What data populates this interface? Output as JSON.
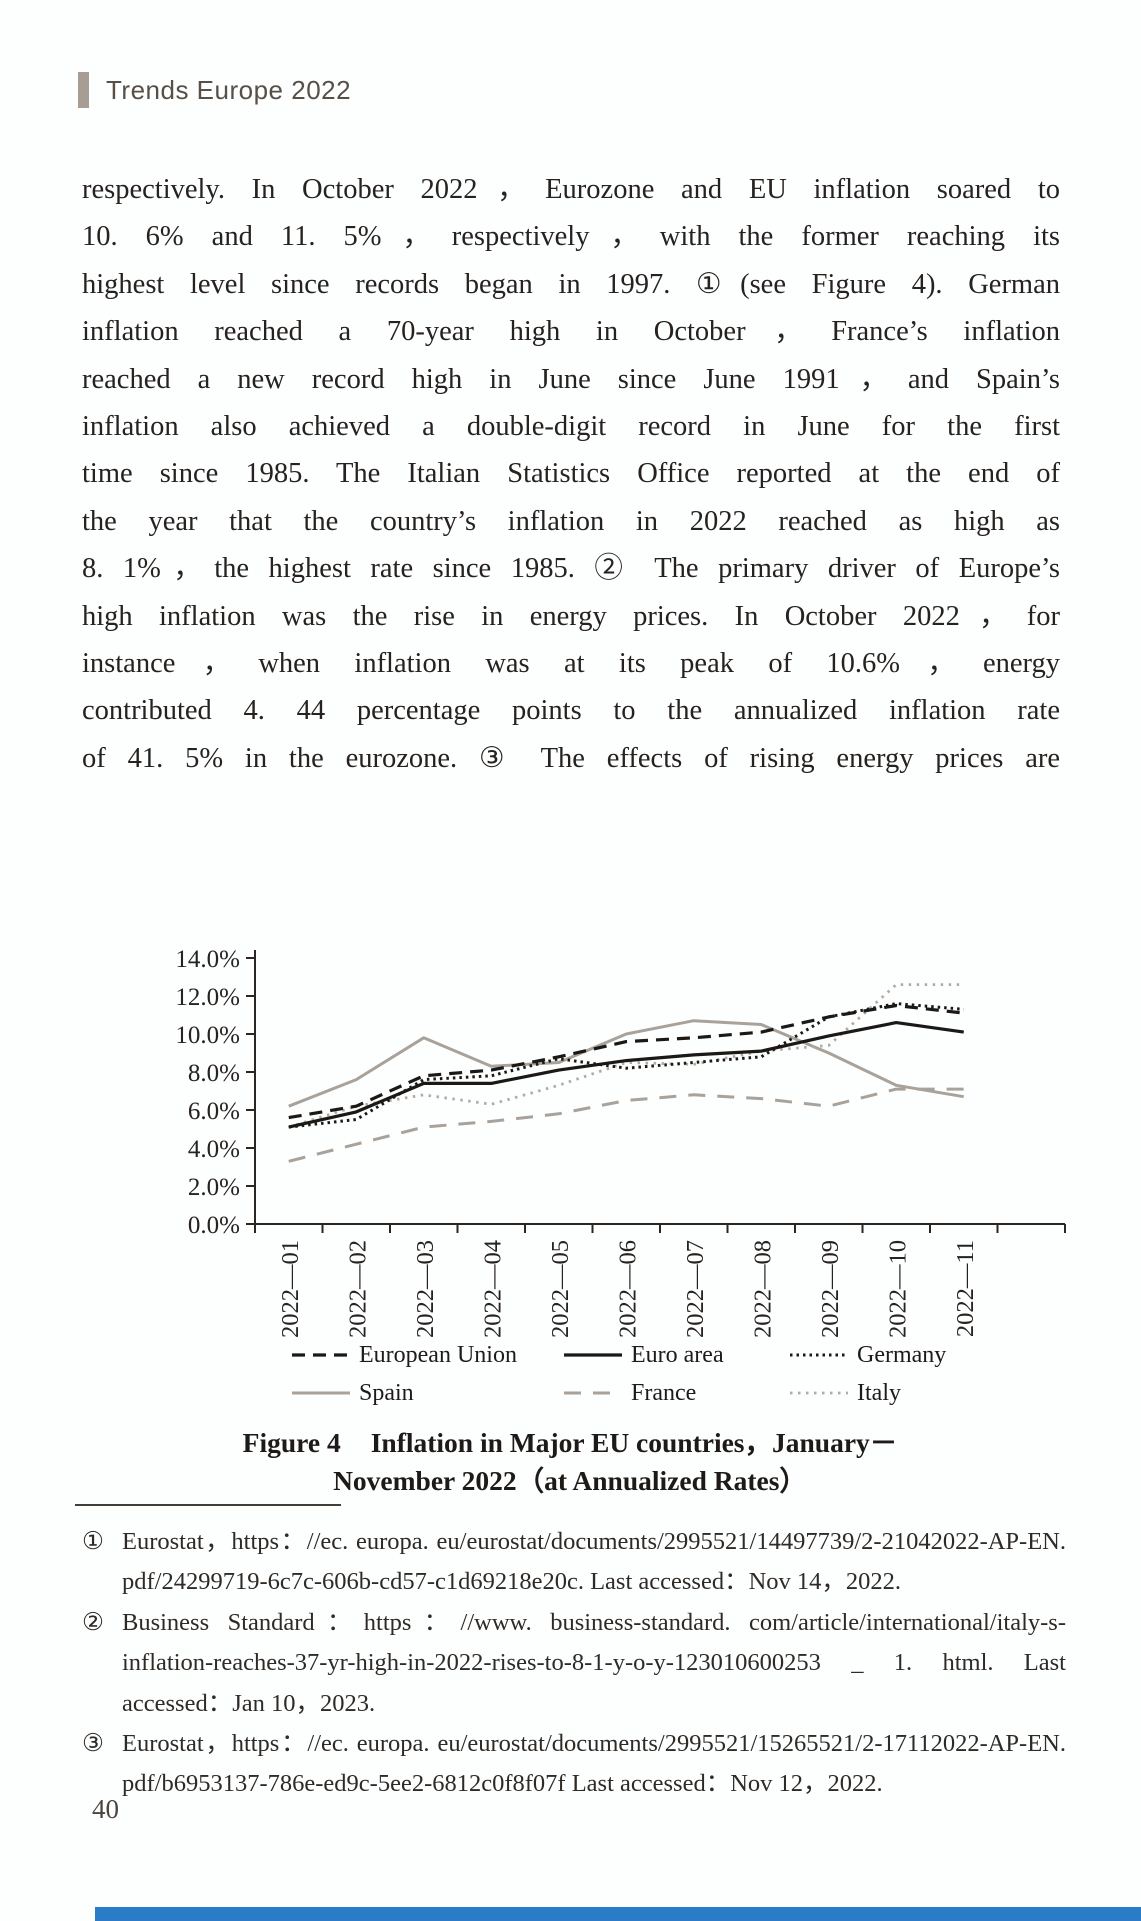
{
  "header": {
    "title": "Trends Europe 2022",
    "accent_color": "#a79d94"
  },
  "body": {
    "lines": [
      "respectively. In October 2022，Eurozone and EU inflation soared to",
      "10. 6% and 11. 5%，respectively，with the former reaching its",
      "highest level since records began in 1997. ①(see Figure 4). German",
      "inflation reached a 70-year high in October，France’s inflation",
      "reached a new record high in June since June 1991，and Spain’s",
      "inflation also achieved a double-digit record in June for the first",
      "time since 1985. The Italian Statistics Office reported at the end of",
      "the year that the country’s inflation in 2022 reached as high as",
      "8. 1%，the highest rate since 1985. ② The primary driver of Europe’s",
      "high inflation was the rise in energy prices. In October 2022，for",
      "instance，when inflation was at its peak of 10.6%，energy",
      "contributed 4. 44 percentage points to the annualized inflation rate",
      "of 41. 5% in the eurozone. ③ The effects of rising energy prices are"
    ]
  },
  "chart_data": {
    "type": "line",
    "title": "Figure 4 Inflation in Major EU countries, January－November 2022 (at Annualized Rates)",
    "xlabel": "",
    "ylabel": "",
    "ylim": [
      0,
      14
    ],
    "grid": false,
    "legend_position": "bottom",
    "yticks": [
      "0.0%",
      "2.0%",
      "4.0%",
      "6.0%",
      "8.0%",
      "10.0%",
      "12.0%",
      "14.0%"
    ],
    "x": [
      "2022—01",
      "2022—02",
      "2022—03",
      "2022—04",
      "2022—05",
      "2022—06",
      "2022—07",
      "2022—08",
      "2022—09",
      "2022—10",
      "2022—11"
    ],
    "series": [
      {
        "name": "Spain",
        "color": "#a9a29a",
        "dash": "",
        "width": 3,
        "values": [
          6.2,
          7.6,
          9.8,
          8.3,
          8.5,
          10.0,
          10.7,
          10.5,
          9.0,
          7.3,
          6.7
        ]
      },
      {
        "name": "France",
        "color": "#a9a29a",
        "dash": "17 12",
        "width": 3,
        "values": [
          3.3,
          4.2,
          5.1,
          5.4,
          5.8,
          6.5,
          6.8,
          6.6,
          6.2,
          7.1,
          7.1
        ]
      },
      {
        "name": "Italy",
        "color": "#b2aba2",
        "dash": "2.5 5.5",
        "width": 2.8,
        "values": [
          5.1,
          6.2,
          6.8,
          6.3,
          7.3,
          8.5,
          8.4,
          9.1,
          9.4,
          12.6,
          12.6
        ]
      },
      {
        "name": "European Union",
        "color": "#1b1916",
        "dash": "13 8",
        "width": 3.2,
        "values": [
          5.6,
          6.2,
          7.8,
          8.1,
          8.8,
          9.6,
          9.8,
          10.1,
          10.9,
          11.5,
          11.1
        ]
      },
      {
        "name": "Euro area",
        "color": "#1b1916",
        "dash": "",
        "width": 3.2,
        "values": [
          5.1,
          5.9,
          7.4,
          7.4,
          8.1,
          8.6,
          8.9,
          9.1,
          9.9,
          10.6,
          10.1
        ]
      },
      {
        "name": "Germany",
        "color": "#1b1916",
        "dash": "2.5 4",
        "width": 3,
        "values": [
          5.1,
          5.5,
          7.6,
          7.8,
          8.7,
          8.2,
          8.5,
          8.8,
          10.9,
          11.6,
          11.3
        ]
      }
    ],
    "legend_rows": [
      [
        "European Union",
        "Euro area",
        "Germany"
      ],
      [
        "Spain",
        "France",
        "Italy"
      ]
    ]
  },
  "figure": {
    "label": "Figure 4",
    "caption_line1": "Inflation in Major EU countries，January－",
    "caption_line2": "November 2022（at Annualized Rates）"
  },
  "footnotes": {
    "items": [
      {
        "marker": "①",
        "text": "Eurostat，https：//ec. europa. eu/eurostat/documents/2995521/14497739/2-21042022-AP-EN. pdf/24299719-6c7c-606b-cd57-c1d69218e20c. Last accessed：Nov 14，2022."
      },
      {
        "marker": "②",
        "text": "Business Standard：https：//www. business-standard. com/article/international/italy-s-inflation-reaches-37-yr-high-in-2022-rises-to-8-1-y-o-y-123010600253 _ 1. html. Last accessed：Jan 10，2023."
      },
      {
        "marker": "③",
        "text": "Eurostat，https：//ec. europa. eu/eurostat/documents/2995521/15265521/2-17112022-AP-EN. pdf/b6953137-786e-ed9c-5ee2-6812c0f8f07f Last accessed：Nov 12，2022."
      }
    ]
  },
  "footer": {
    "page_number": "40",
    "bar_color": "#2a7cc9"
  }
}
